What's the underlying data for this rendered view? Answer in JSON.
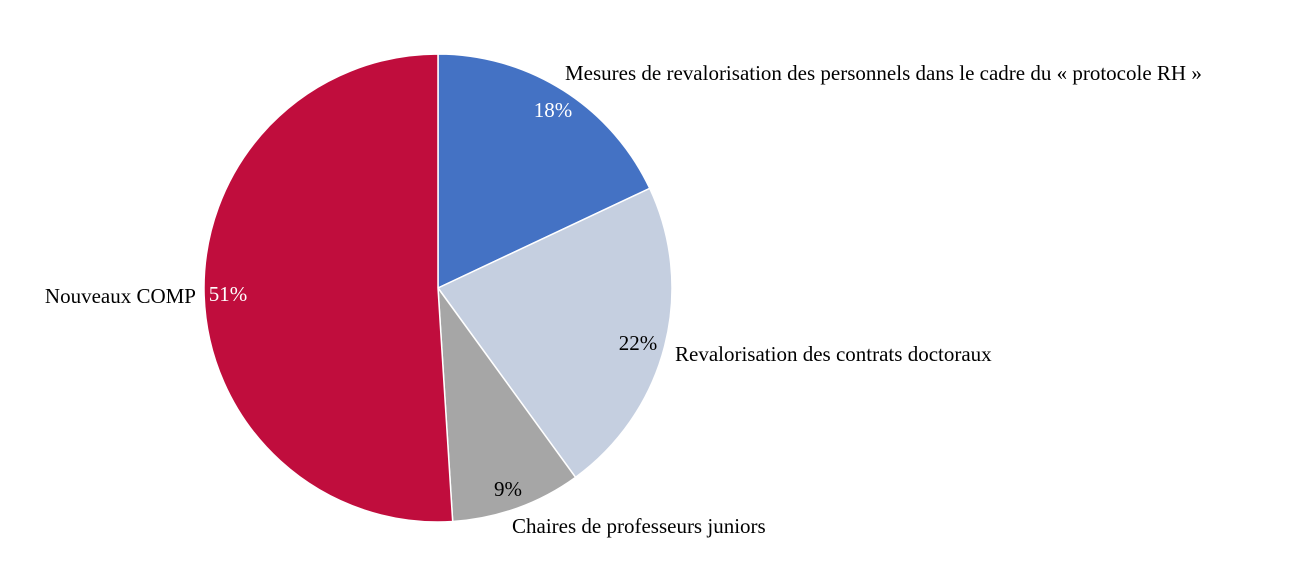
{
  "chart_data": {
    "type": "pie",
    "categories": [
      "Mesures de revalorisation des personnels dans le cadre du « protocole RH »",
      "Revalorisation des contrats doctoraux",
      "Chaires de professeurs juniors",
      "Nouveaux COMP"
    ],
    "values": [
      18,
      22,
      9,
      51
    ],
    "value_labels": [
      "18%",
      "22%",
      "9%",
      "51%"
    ],
    "colors": [
      "#4472c4",
      "#c5cfe0",
      "#a6a6a6",
      "#c00d3d"
    ]
  }
}
